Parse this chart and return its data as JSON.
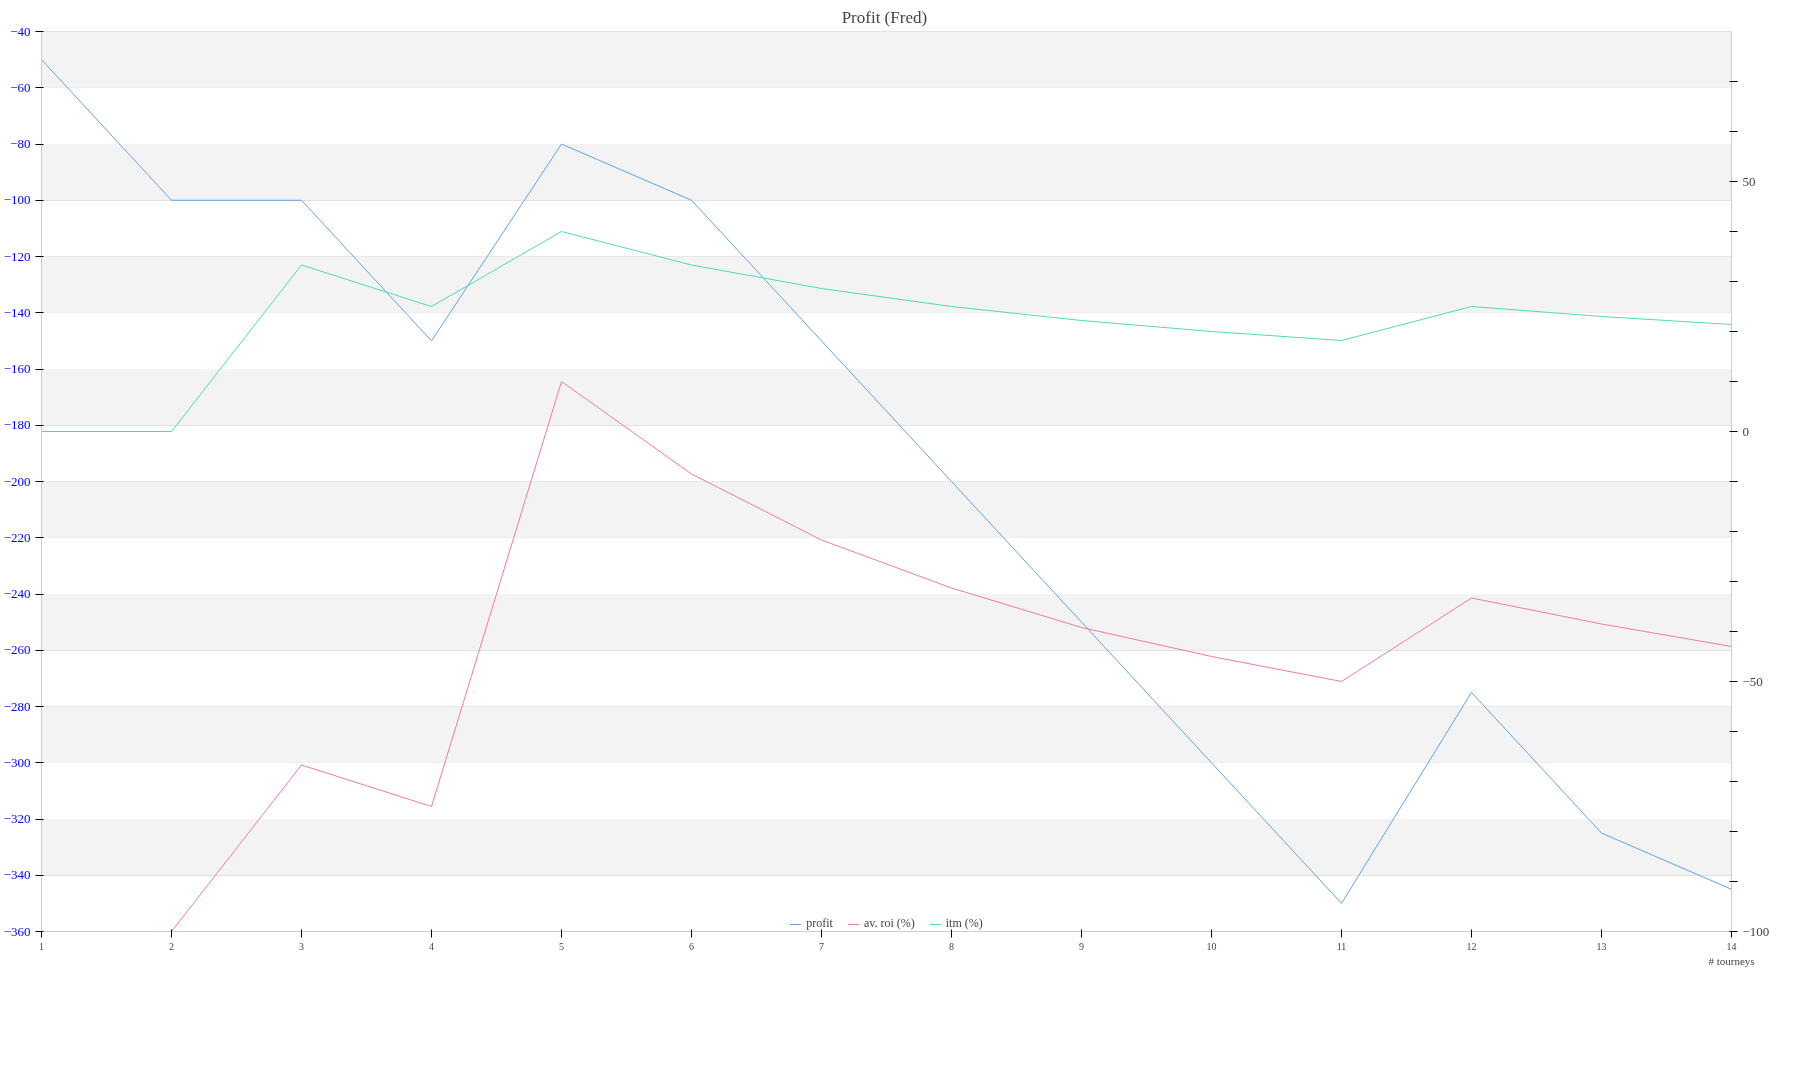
{
  "chart_data": {
    "type": "line",
    "title": "Profit  (Fred)",
    "xlabel": "# tourneys",
    "x": [
      1,
      2,
      3,
      4,
      5,
      6,
      7,
      8,
      9,
      10,
      11,
      12,
      13,
      14
    ],
    "xlim": [
      1,
      14
    ],
    "xticks": [
      1,
      2,
      3,
      4,
      5,
      6,
      7,
      8,
      9,
      10,
      11,
      12,
      13,
      14
    ],
    "ylim": [
      -360,
      -40
    ],
    "yticks": [
      -360,
      -340,
      -320,
      -300,
      -280,
      -260,
      -240,
      -220,
      -200,
      -180,
      -160,
      -140,
      -120,
      -100,
      -80,
      -60,
      -40
    ],
    "y2lim": [
      -100,
      80
    ],
    "y2ticks": [
      -100,
      {
        "value": -90,
        "label": null
      },
      {
        "value": -80,
        "label": null
      },
      {
        "value": -70,
        "label": null
      },
      {
        "value": -60,
        "label": null
      },
      -50,
      {
        "value": -40,
        "label": null
      },
      {
        "value": -30,
        "label": null
      },
      {
        "value": -20,
        "label": null
      },
      {
        "value": -10,
        "label": null
      },
      0,
      {
        "value": 10,
        "label": null
      },
      {
        "value": 20,
        "label": null
      },
      {
        "value": 30,
        "label": null
      },
      {
        "value": 40,
        "label": null
      },
      50,
      {
        "value": 60,
        "label": null
      },
      {
        "value": 70,
        "label": null
      }
    ],
    "grid": "y",
    "legend": "bottom",
    "marker": "none",
    "line_style": "solid",
    "bands": [
      {
        "axis": "y",
        "from": -60,
        "to": -40,
        "color": "#f3f3f3"
      },
      {
        "axis": "y",
        "from": -100,
        "to": -80,
        "color": "#f3f3f3"
      },
      {
        "axis": "y",
        "from": -140,
        "to": -120,
        "color": "#f3f3f3"
      },
      {
        "axis": "y",
        "from": -180,
        "to": -160,
        "color": "#f3f3f3"
      },
      {
        "axis": "y",
        "from": -220,
        "to": -200,
        "color": "#f3f3f3"
      },
      {
        "axis": "y",
        "from": -260,
        "to": -240,
        "color": "#f3f3f3"
      },
      {
        "axis": "y",
        "from": -300,
        "to": -280,
        "color": "#f3f3f3"
      },
      {
        "axis": "y",
        "from": -340,
        "to": -320,
        "color": "#f3f3f3"
      }
    ],
    "series": [
      {
        "name": "profit",
        "color": "#5da5e8",
        "values": [
          -50,
          -100,
          -100,
          -150,
          -80,
          -100,
          -150,
          -200,
          -250,
          -300,
          -350,
          -275,
          -325,
          -345
        ]
      },
      {
        "name": "av. roi (%)",
        "color": "#f07ca0",
        "axis": "y2",
        "values": [
          null,
          -100,
          -66.7,
          -75,
          10,
          -8.5,
          -21.7,
          -31.3,
          -39.2,
          -45,
          -50,
          -33.3,
          -38.5,
          -43
        ]
      },
      {
        "name": "itm (%)",
        "color": "#4fdcb0",
        "axis": "y2",
        "values": [
          0,
          0,
          33.3,
          25,
          40,
          33.3,
          28.6,
          25,
          22.2,
          20,
          18.2,
          25,
          23,
          21.4
        ]
      }
    ]
  }
}
